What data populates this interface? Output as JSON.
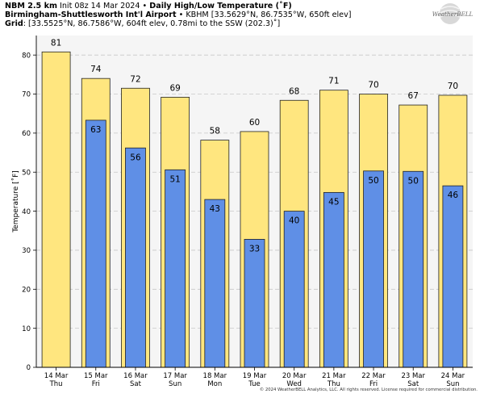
{
  "header": {
    "line1_bold": "NBM 2.5 km",
    "line1_rest": " Init 08z 14 Mar 2024 • ",
    "line1_title": "Daily High/Low Temperature (˚F)",
    "line2_bold": "Birmingham-Shuttlesworth Int'l Airport",
    "line2_rest": " • KBHM [33.5629°N, 86.7535°W, 650ft elev]",
    "line3_bold": "Grid",
    "line3_rest": ": [33.5525°N, 86.7586°W, 604ft elev, 0.78mi to the SSW (202.3)˚]"
  },
  "logo_text": "WeatherBELL",
  "copyright": "© 2024 WeatherBELL Analytics, LLC. All rights reserved. License required for commercial distribution.",
  "chart_data": {
    "type": "bar",
    "ylabel": "Temperature [˚F]",
    "ylim": [
      0,
      85
    ],
    "yticks": [
      0,
      10,
      20,
      30,
      40,
      50,
      60,
      70,
      80
    ],
    "grid": true,
    "categories": [
      "14 Mar",
      "15 Mar",
      "16 Mar",
      "17 Mar",
      "18 Mar",
      "19 Mar",
      "20 Mar",
      "21 Mar",
      "22 Mar",
      "23 Mar",
      "24 Mar"
    ],
    "days": [
      "Thu",
      "Fri",
      "Sat",
      "Sun",
      "Mon",
      "Tue",
      "Wed",
      "Thu",
      "Fri",
      "Sat",
      "Sun"
    ],
    "series": [
      {
        "values": [
          80.8,
          74.0,
          71.5,
          69.2,
          58.2,
          60.4,
          68.4,
          71.0,
          70.0,
          67.2,
          69.7
        ],
        "labels": [
          "81",
          "74",
          "72",
          "69",
          "58",
          "60",
          "68",
          "71",
          "70",
          "67",
          "70"
        ],
        "color": "#ffe67f"
      },
      {
        "values": [
          null,
          63.3,
          56.2,
          50.6,
          43.0,
          32.8,
          40.0,
          44.8,
          50.3,
          50.2,
          46.5
        ],
        "labels": [
          null,
          "63",
          "56",
          "51",
          "43",
          "33",
          "40",
          "45",
          "50",
          "50",
          "46"
        ],
        "color": "#5f8fe6"
      }
    ]
  }
}
